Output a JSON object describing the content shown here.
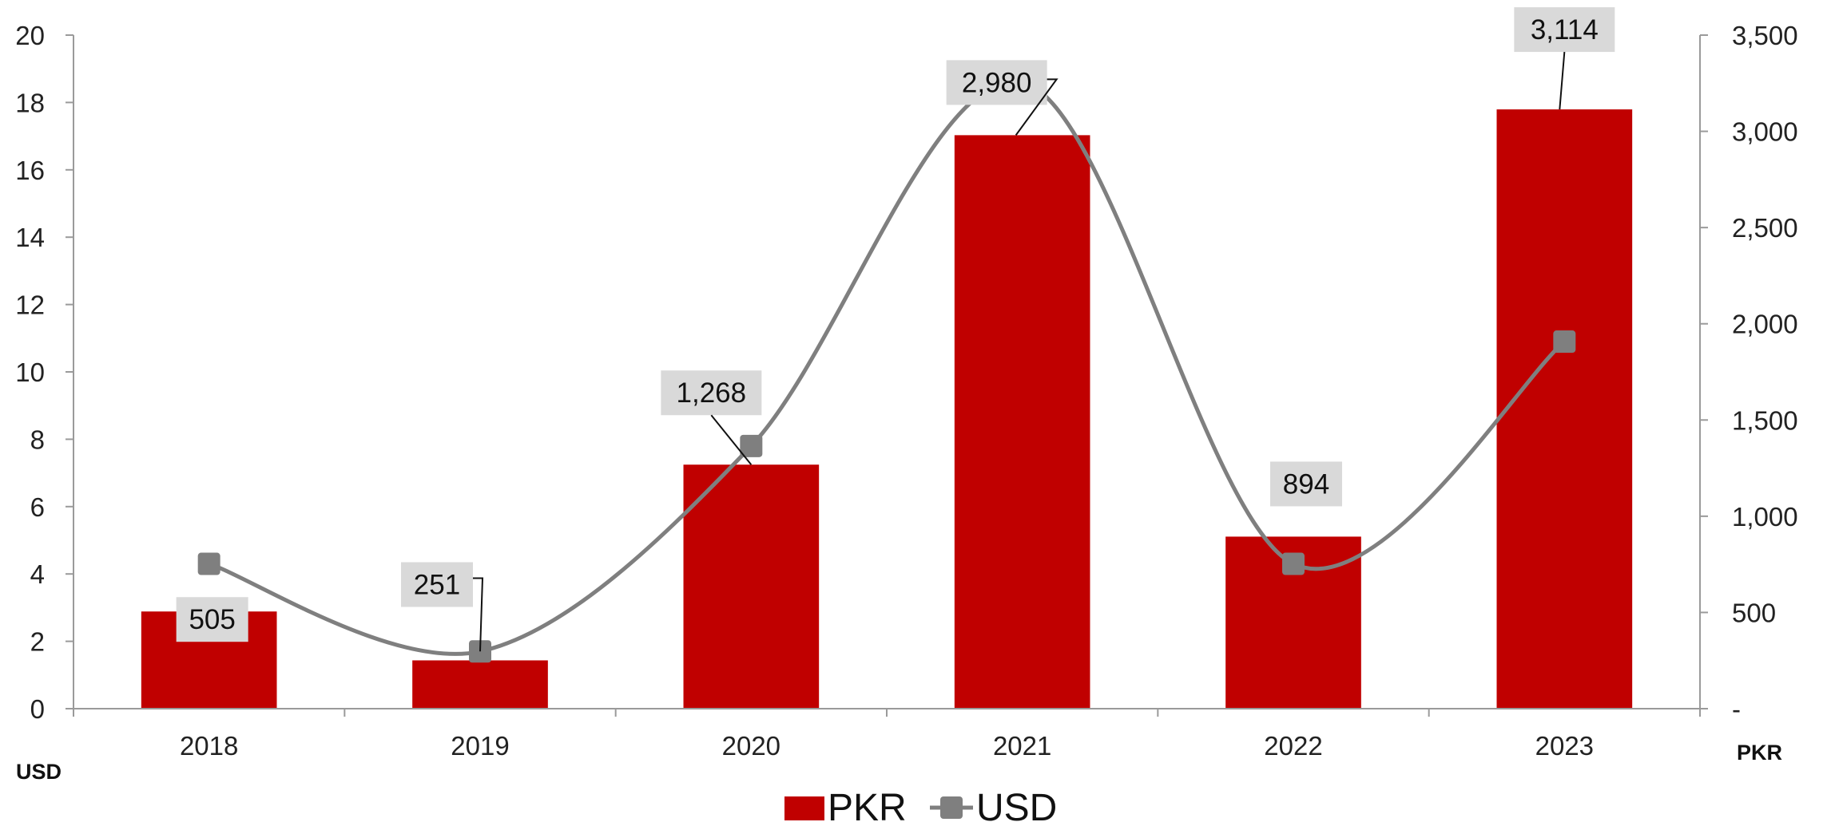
{
  "chart_data": {
    "type": "bar",
    "categories": [
      "2018",
      "2019",
      "2020",
      "2021",
      "2022",
      "2023"
    ],
    "series": [
      {
        "name": "PKR",
        "kind": "bar",
        "axis": "right",
        "values": [
          505,
          251,
          1268,
          2980,
          894,
          3114
        ],
        "color": "#C00000"
      },
      {
        "name": "USD",
        "kind": "line",
        "axis": "left",
        "values": [
          4.3,
          1.7,
          7.8,
          18.6,
          4.3,
          10.9
        ],
        "color": "#7F7F7F"
      }
    ],
    "data_labels": [
      "505",
      "251",
      "1,268",
      "2,980",
      "894",
      "3,114"
    ],
    "left_axis": {
      "unit_label": "USD",
      "ylim": [
        0,
        20
      ],
      "ticks": [
        "0",
        "2",
        "4",
        "6",
        "8",
        "10",
        "12",
        "14",
        "16",
        "18",
        "20"
      ]
    },
    "right_axis": {
      "unit_label": "PKR",
      "ylim": [
        0,
        3500
      ],
      "ticks": [
        "-",
        "500",
        "1,000",
        "1,500",
        "2,000",
        "2,500",
        "3,000",
        "3,500"
      ]
    },
    "legend": {
      "position": "bottom",
      "items": [
        "PKR",
        "USD"
      ]
    },
    "grid": false,
    "title": ""
  }
}
